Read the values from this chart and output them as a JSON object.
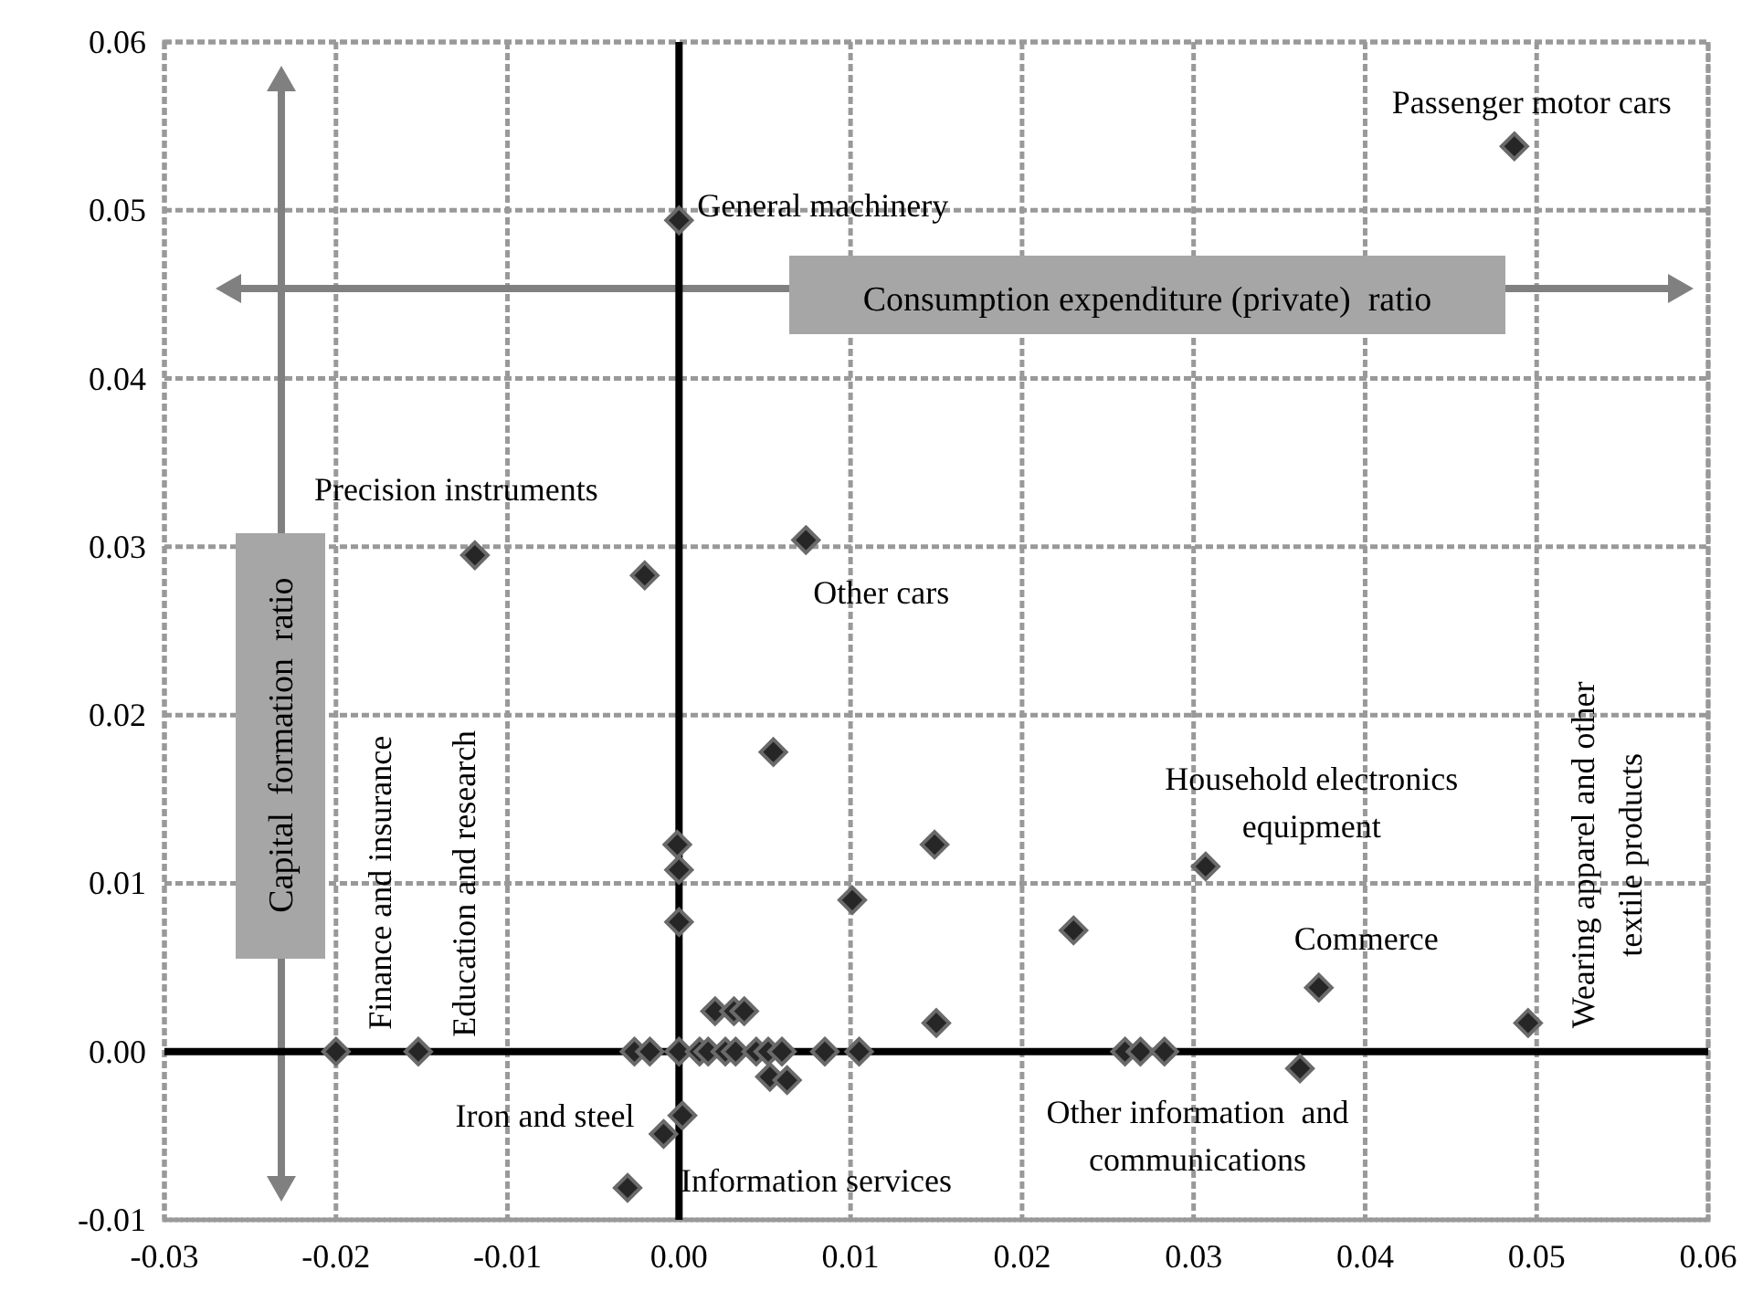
{
  "chart_data": {
    "type": "scatter",
    "marker": "diamond",
    "grid": true,
    "xlim": [
      -0.03,
      0.06
    ],
    "xticks": [
      -0.03,
      -0.02,
      -0.01,
      {
        "value": 0,
        "label": "0.00"
      },
      0.01,
      0.02,
      0.03,
      0.04,
      0.05,
      0.06
    ],
    "ylim": [
      -0.01,
      0.06
    ],
    "yticks": [
      -0.01,
      {
        "value": 0,
        "label": "0.00"
      },
      0.01,
      0.02,
      0.03,
      0.04,
      0.05,
      0.06
    ],
    "series": [
      {
        "color": "#262626",
        "x": [
          0.0487,
          0,
          -0.0119,
          -0.002,
          0.0074,
          0.0055,
          0.0149,
          -0.0001,
          0,
          0,
          0.0101,
          0.023,
          0.0307,
          0.0373,
          0.0495,
          0.015,
          0.0362,
          -0.02,
          -0.0152,
          -0.0026,
          -0.0017,
          0,
          0.0012,
          0.0017,
          0.0027,
          0.0033,
          0.0045,
          0.0052,
          0.006,
          0.0085,
          0.0105,
          0.026,
          0.0269,
          0.0283,
          0.0021,
          0.0032,
          0.0038,
          0.0053,
          0.0063,
          0.0002,
          -0.0009,
          -0.003
        ],
        "values": [
          0.0538,
          0.0494,
          0.0295,
          0.0283,
          0.0304,
          0.0178,
          0.0123,
          0.0123,
          0.0108,
          0.0077,
          0.009,
          0.0072,
          0.011,
          0.0038,
          0.0017,
          0.0017,
          -0.001,
          0,
          0,
          0,
          0,
          0,
          0,
          0,
          0,
          0,
          0,
          0,
          0,
          0,
          0,
          0,
          0,
          0,
          0.0024,
          0.0024,
          0.0024,
          -0.0015,
          -0.0017,
          -0.0038,
          -0.0049,
          -0.0081
        ]
      }
    ],
    "annotations": [
      {
        "text": "Passenger motor cars",
        "x": 0.0487,
        "y": 0.0538
      },
      {
        "text": "General machinery",
        "x": 0,
        "y": 0.0494
      },
      {
        "text": "Precision instruments",
        "x": -0.0119,
        "y": 0.0295
      },
      {
        "text": "Other cars",
        "x": 0.0074,
        "y": 0.0304
      },
      {
        "text": "Household electronics\nequipment",
        "x": 0.0307,
        "y": 0.011
      },
      {
        "text": "Commerce",
        "x": 0.0373,
        "y": 0.0038
      },
      {
        "text": "Wearing apparel and other\ntextile products",
        "x": 0.0495,
        "y": 0.0017
      },
      {
        "text": "Other information  and\ncommunications",
        "x": 0.0362,
        "y": -0.001
      },
      {
        "text": "Iron and steel",
        "x": -0.0026,
        "y": 0
      },
      {
        "text": "Information services",
        "x": -0.003,
        "y": -0.0081
      },
      {
        "text": "Finance and insurance",
        "x": -0.02,
        "y": 0
      },
      {
        "text": "Education and research",
        "x": -0.0152,
        "y": 0
      },
      "Consumption expenditure (private)  ratio",
      "Capital  formation  ratio"
    ]
  }
}
